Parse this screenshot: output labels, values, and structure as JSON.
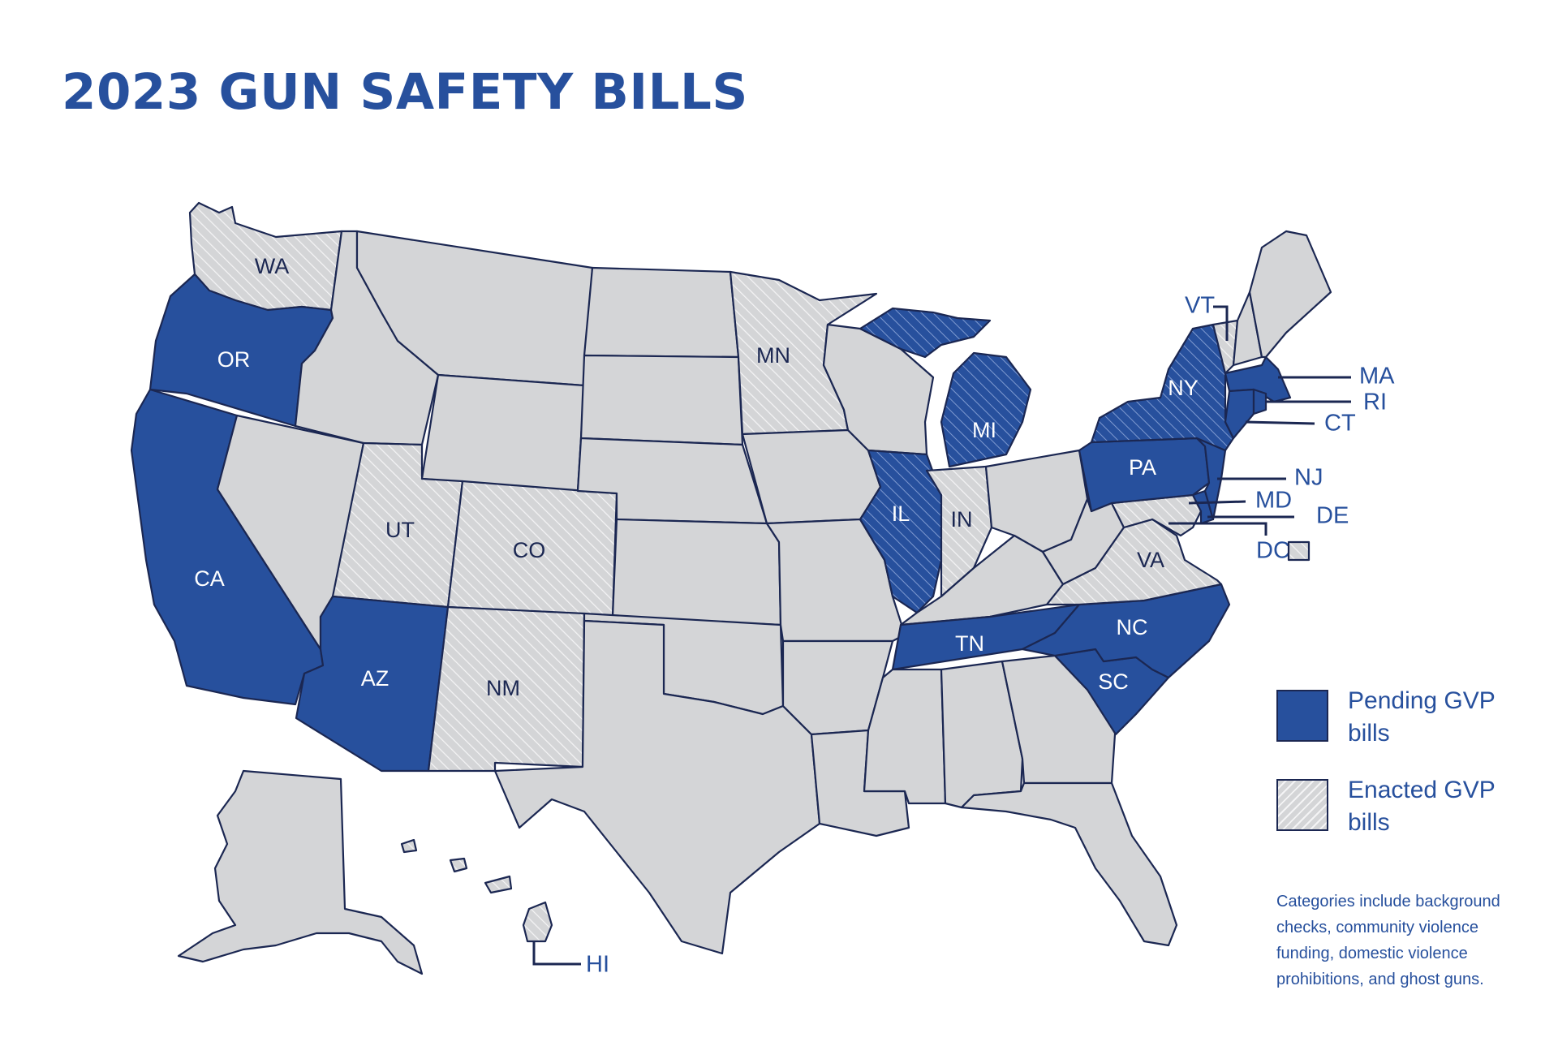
{
  "title": "2023 GUN SAFETY BILLS",
  "colors": {
    "pending": "#27509d",
    "enacted": "#d4d5d7",
    "none": "#d4d5d7",
    "outline": "#1b2752"
  },
  "states": {
    "WA": {
      "label": "WA",
      "status": "enacted"
    },
    "OR": {
      "label": "OR",
      "status": "pending"
    },
    "CA": {
      "label": "CA",
      "status": "pending"
    },
    "AZ": {
      "label": "AZ",
      "status": "pending"
    },
    "UT": {
      "label": "UT",
      "status": "enacted"
    },
    "CO": {
      "label": "CO",
      "status": "enacted"
    },
    "NM": {
      "label": "NM",
      "status": "enacted"
    },
    "MN": {
      "label": "MN",
      "status": "enacted"
    },
    "IL": {
      "label": "IL",
      "status": "pending-and-enacted"
    },
    "MI": {
      "label": "MI",
      "status": "pending-and-enacted"
    },
    "IN": {
      "label": "IN",
      "status": "enacted"
    },
    "TN": {
      "label": "TN",
      "status": "pending"
    },
    "NC": {
      "label": "NC",
      "status": "pending"
    },
    "SC": {
      "label": "SC",
      "status": "pending"
    },
    "VA": {
      "label": "VA",
      "status": "enacted"
    },
    "PA": {
      "label": "PA",
      "status": "pending"
    },
    "NY": {
      "label": "NY",
      "status": "pending-and-enacted"
    },
    "NJ": {
      "label": "NJ",
      "status": "pending"
    },
    "MA": {
      "label": "MA",
      "status": "pending"
    },
    "RI": {
      "label": "RI",
      "status": "pending"
    },
    "CT": {
      "label": "CT",
      "status": "pending"
    },
    "MD": {
      "label": "MD",
      "status": "enacted"
    },
    "DE": {
      "label": "DE",
      "status": "pending"
    },
    "DC": {
      "label": "DC",
      "status": "enacted"
    },
    "VT": {
      "label": "VT",
      "status": "enacted"
    },
    "HI": {
      "label": "HI",
      "status": "enacted"
    }
  },
  "legend": {
    "pending": "Pending GVP bills",
    "enacted": "Enacted GVP bills"
  },
  "note": "Categories include background checks, community violence funding, domestic violence prohibitions, and ghost guns."
}
